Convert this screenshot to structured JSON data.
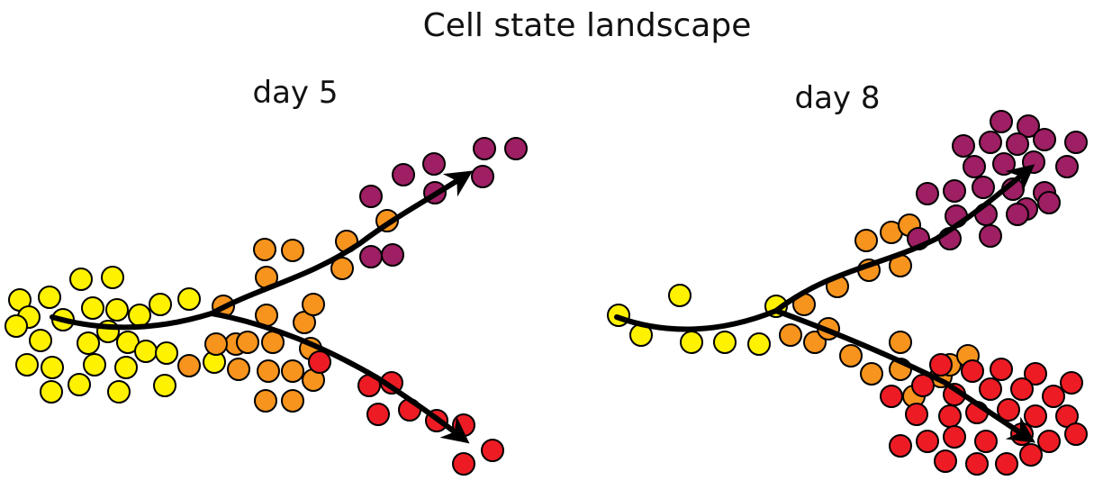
{
  "title": "Cell state landscape",
  "panels": [
    {
      "label": "day 5"
    },
    {
      "label": "day 8"
    }
  ]
}
